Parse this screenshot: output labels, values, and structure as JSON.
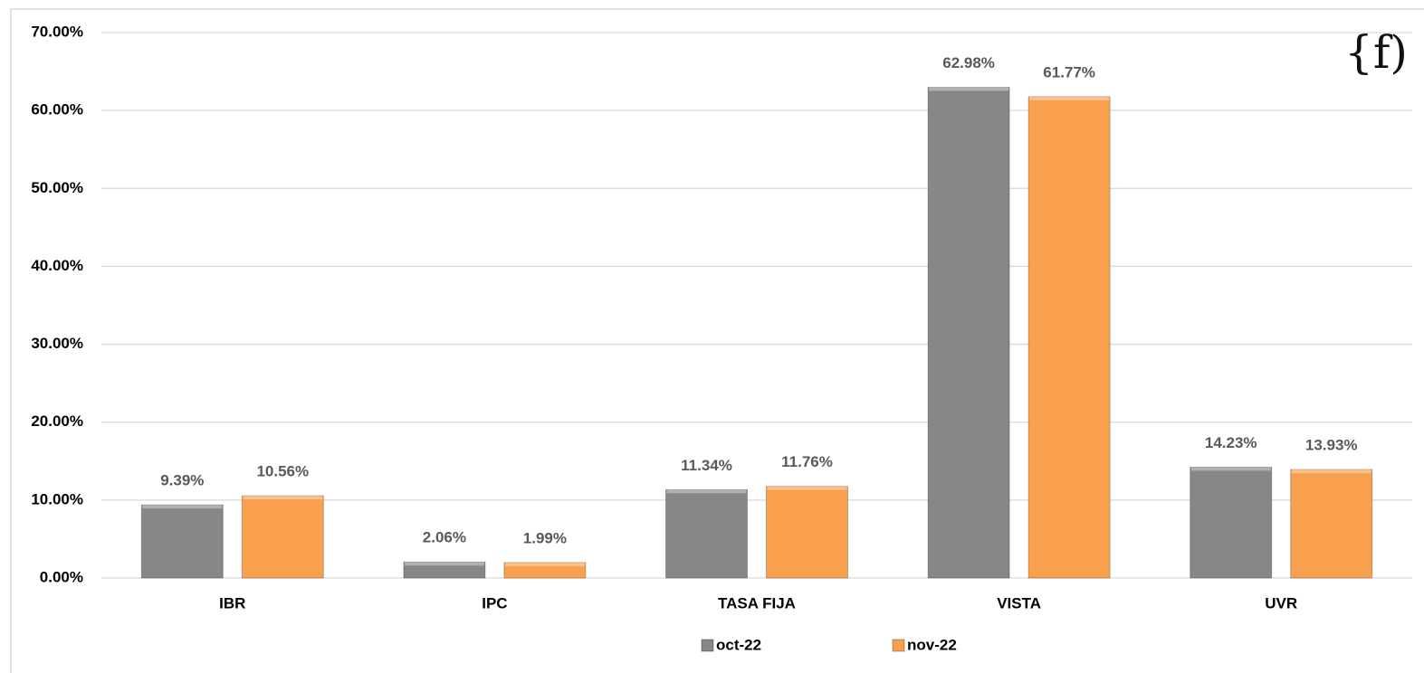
{
  "chart_data": {
    "type": "bar",
    "logo": "{f)",
    "categories": [
      "IBR",
      "IPC",
      "TASA FIJA",
      "VISTA",
      "UVR"
    ],
    "series": [
      {
        "name": "oct-22",
        "color": "#878787",
        "values": [
          9.39,
          2.06,
          11.34,
          62.98,
          14.23
        ],
        "value_labels": [
          "9.39%",
          "2.06%",
          "11.34%",
          "62.98%",
          "14.23%"
        ]
      },
      {
        "name": "nov-22",
        "color": "#f9a04f",
        "values": [
          10.56,
          1.99,
          11.76,
          61.77,
          13.93
        ],
        "value_labels": [
          "10.56%",
          "1.99%",
          "11.76%",
          "61.77%",
          "13.93%"
        ]
      }
    ],
    "ylim": [
      0,
      70
    ],
    "yticks": [
      {
        "value": 0,
        "label": "0.00%"
      },
      {
        "value": 10,
        "label": "10.00%"
      },
      {
        "value": 20,
        "label": "20.00%"
      },
      {
        "value": 30,
        "label": "30.00%"
      },
      {
        "value": 40,
        "label": "40.00%"
      },
      {
        "value": 50,
        "label": "50.00%"
      },
      {
        "value": 60,
        "label": "60.00%"
      },
      {
        "value": 70,
        "label": "70.00%"
      }
    ],
    "grid": true,
    "legend": "bottom"
  }
}
